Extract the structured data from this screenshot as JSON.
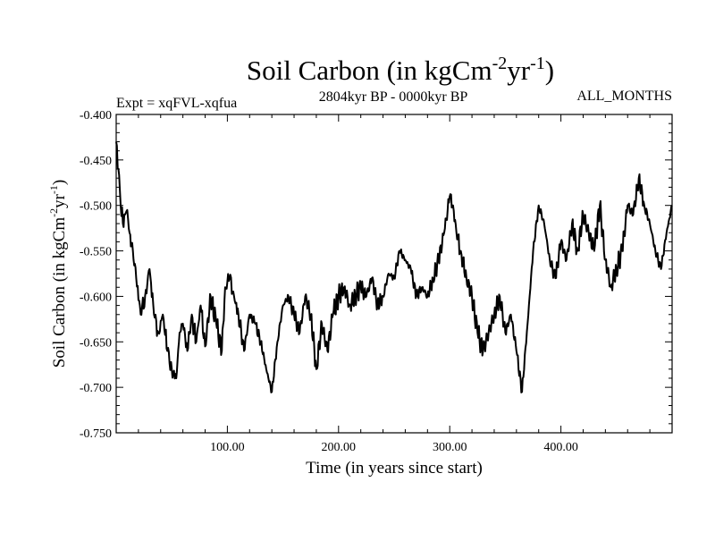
{
  "chart_data": {
    "type": "line",
    "title_main": "Soil Carbon (in kgCm",
    "title_sup1": "-2",
    "title_mid": "yr",
    "title_sup2": "-1",
    "title_end": ")",
    "subtitle_left": "Expt = xqFVL-xqfua",
    "subtitle_center": "2804kyr BP - 0000kyr BP",
    "subtitle_right": "ALL_MONTHS",
    "xlabel": "Time (in years since start)",
    "ylabel_main": "Soil Carbon (in kgCm",
    "ylabel_sup1": "-2",
    "ylabel_mid": "yr",
    "ylabel_sup2": "-1",
    "ylabel_end": ")",
    "xlim": [
      0,
      500
    ],
    "ylim": [
      -0.75,
      -0.4
    ],
    "x_ticks": [
      {
        "v": 100,
        "label": "100.00"
      },
      {
        "v": 200,
        "label": "200.00"
      },
      {
        "v": 300,
        "label": "300.00"
      },
      {
        "v": 400,
        "label": "400.00"
      }
    ],
    "y_ticks": [
      {
        "v": -0.4,
        "label": "-0.400"
      },
      {
        "v": -0.45,
        "label": "-0.450"
      },
      {
        "v": -0.5,
        "label": "-0.500"
      },
      {
        "v": -0.55,
        "label": "-0.550"
      },
      {
        "v": -0.6,
        "label": "-0.600"
      },
      {
        "v": -0.65,
        "label": "-0.650"
      },
      {
        "v": -0.7,
        "label": "-0.700"
      },
      {
        "v": -0.75,
        "label": "-0.750"
      }
    ],
    "series": [
      {
        "name": "soil carbon",
        "x": [
          0,
          2,
          4,
          6,
          8,
          10,
          12,
          15,
          18,
          22,
          26,
          30,
          34,
          38,
          42,
          46,
          50,
          54,
          57,
          60,
          64,
          68,
          72,
          76,
          80,
          85,
          90,
          95,
          98,
          102,
          106,
          110,
          115,
          120,
          125,
          130,
          135,
          140,
          145,
          150,
          155,
          160,
          165,
          170,
          175,
          180,
          185,
          190,
          195,
          200,
          205,
          210,
          215,
          220,
          225,
          230,
          235,
          240,
          245,
          250,
          255,
          260,
          265,
          270,
          275,
          280,
          285,
          290,
          295,
          300,
          303,
          306,
          310,
          315,
          320,
          325,
          330,
          335,
          340,
          345,
          350,
          355,
          360,
          365,
          370,
          375,
          380,
          385,
          390,
          395,
          400,
          405,
          410,
          415,
          420,
          425,
          430,
          435,
          440,
          445,
          450,
          455,
          460,
          465,
          470,
          475,
          480,
          485,
          490,
          495,
          500
        ],
        "y": [
          -0.43,
          -0.46,
          -0.5,
          -0.52,
          -0.51,
          -0.505,
          -0.53,
          -0.55,
          -0.58,
          -0.62,
          -0.6,
          -0.57,
          -0.62,
          -0.64,
          -0.62,
          -0.66,
          -0.68,
          -0.69,
          -0.64,
          -0.63,
          -0.66,
          -0.62,
          -0.65,
          -0.61,
          -0.655,
          -0.6,
          -0.63,
          -0.66,
          -0.59,
          -0.58,
          -0.6,
          -0.62,
          -0.66,
          -0.62,
          -0.63,
          -0.65,
          -0.68,
          -0.705,
          -0.65,
          -0.61,
          -0.6,
          -0.62,
          -0.64,
          -0.6,
          -0.62,
          -0.68,
          -0.63,
          -0.66,
          -0.62,
          -0.6,
          -0.59,
          -0.61,
          -0.6,
          -0.59,
          -0.6,
          -0.58,
          -0.61,
          -0.6,
          -0.575,
          -0.58,
          -0.55,
          -0.56,
          -0.57,
          -0.6,
          -0.59,
          -0.6,
          -0.58,
          -0.56,
          -0.53,
          -0.49,
          -0.5,
          -0.53,
          -0.55,
          -0.58,
          -0.6,
          -0.64,
          -0.66,
          -0.64,
          -0.62,
          -0.6,
          -0.64,
          -0.62,
          -0.66,
          -0.705,
          -0.63,
          -0.55,
          -0.5,
          -0.52,
          -0.56,
          -0.58,
          -0.54,
          -0.56,
          -0.52,
          -0.55,
          -0.51,
          -0.53,
          -0.55,
          -0.5,
          -0.56,
          -0.59,
          -0.57,
          -0.55,
          -0.5,
          -0.51,
          -0.47,
          -0.5,
          -0.52,
          -0.55,
          -0.57,
          -0.53,
          -0.5
        ]
      }
    ]
  }
}
